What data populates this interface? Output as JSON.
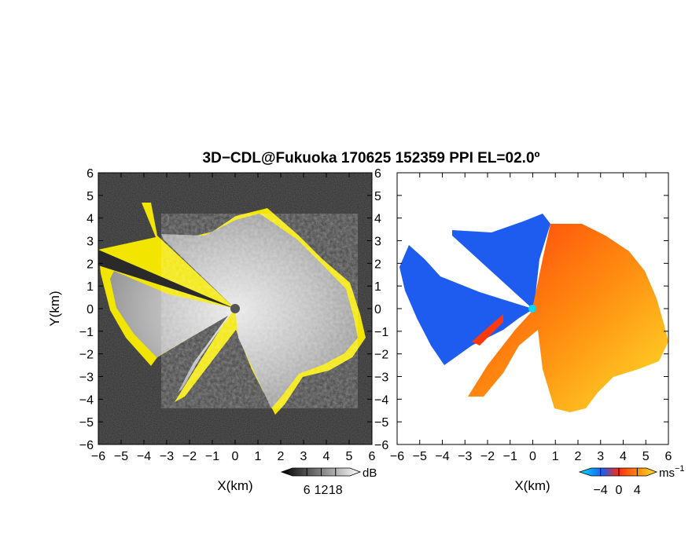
{
  "chart_data": {
    "title": "3D−CDL@Fukuoka 170625 152359 PPI EL=02.0º",
    "type": "heatmap",
    "panels": [
      {
        "id": "snr",
        "description_colormap": "grayscale with yellow edge pixels",
        "xlabel": "X(km)",
        "ylabel": "Y(km)",
        "xlim": [
          -6,
          6
        ],
        "ylim": [
          -6,
          6
        ],
        "xticks": [
          "−6",
          "−5",
          "−4",
          "−3",
          "−2",
          "−1",
          "0",
          "1",
          "2",
          "3",
          "4",
          "5",
          "6"
        ],
        "yticks": [
          "6",
          "5",
          "4",
          "3",
          "2",
          "1",
          "0",
          "−1",
          "−2",
          "−3",
          "−4",
          "−5",
          "−6"
        ],
        "colorbar": {
          "unit": "dB",
          "ticks": [
            "6",
            "12",
            "18"
          ],
          "range": [
            0,
            24
          ]
        }
      },
      {
        "id": "velocity",
        "description_colormap": "blue (negative) to red/orange/yellow (positive)",
        "xlabel": "X(km)",
        "xlim": [
          -6,
          6
        ],
        "ylim": [
          -6,
          6
        ],
        "xticks": [
          "−6",
          "−5",
          "−4",
          "−3",
          "−2",
          "−1",
          "0",
          "1",
          "2",
          "3",
          "4",
          "5",
          "6"
        ],
        "yticks": [
          "6",
          "5",
          "4",
          "3",
          "2",
          "1",
          "0",
          "−1",
          "−2",
          "−3",
          "−4",
          "−5",
          "−6"
        ],
        "colorbar": {
          "unit": "ms",
          "unit_exponent": "−1",
          "ticks": [
            "−4",
            "0",
            "4"
          ],
          "range": [
            -6,
            6
          ]
        }
      }
    ],
    "colors": {
      "background_noise": "#2a2a2a",
      "echo_edge": "#ffff00",
      "velocity_negative": "#1e5cf0",
      "velocity_positive": "#ff5a10",
      "velocity_high": "#ffd21a",
      "radar_site": "#00d8ff"
    },
    "radar_site": [
      0,
      0
    ]
  }
}
